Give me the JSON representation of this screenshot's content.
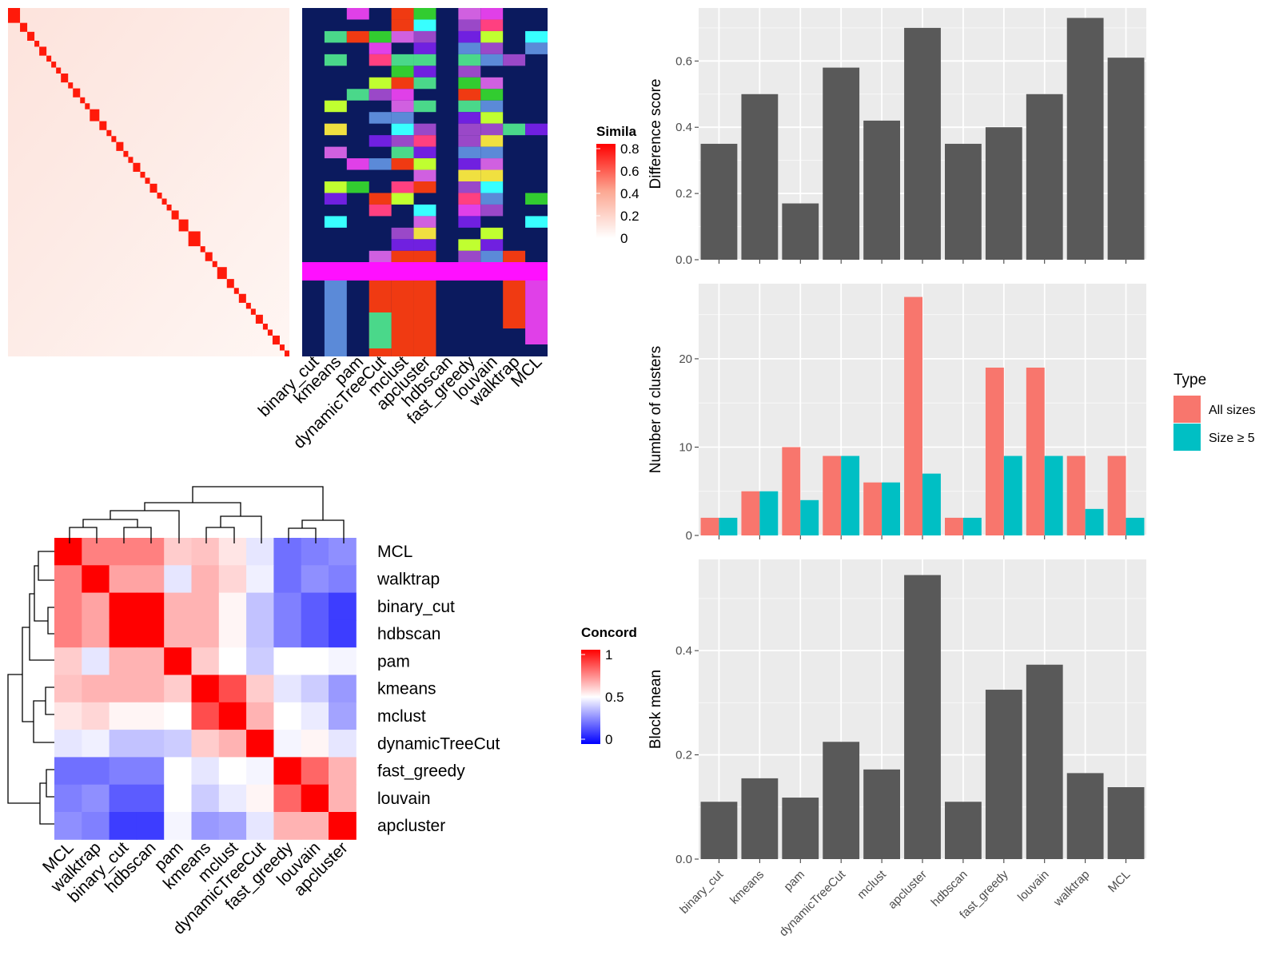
{
  "methods_order": [
    "binary_cut",
    "kmeans",
    "pam",
    "dynamicTreeCut",
    "mclust",
    "apcluster",
    "hdbscan",
    "fast_greedy",
    "louvain",
    "walktrap",
    "MCL"
  ],
  "similarity_heatmap": {
    "legend_title": "Simila",
    "legend_ticks": [
      "0.8",
      "0.6",
      "0.4",
      "0.2",
      "0"
    ],
    "columns": [
      "binary_cut",
      "kmeans",
      "pam",
      "dynamicTreeCut",
      "mclust",
      "apcluster",
      "hdbscan",
      "fast_greedy",
      "louvain",
      "walktrap",
      "MCL"
    ]
  },
  "concordance_heatmap": {
    "legend_title": "Concord",
    "legend_ticks": [
      "1",
      "0.5",
      "0"
    ],
    "order": [
      "MCL",
      "walktrap",
      "binary_cut",
      "hdbscan",
      "pam",
      "kmeans",
      "mclust",
      "dynamicTreeCut",
      "fast_greedy",
      "louvain",
      "apcluster"
    ],
    "matrix": [
      [
        1.0,
        0.75,
        0.75,
        0.75,
        0.6,
        0.62,
        0.55,
        0.45,
        0.22,
        0.25,
        0.28
      ],
      [
        0.75,
        1.0,
        0.68,
        0.68,
        0.45,
        0.65,
        0.58,
        0.47,
        0.22,
        0.28,
        0.25
      ],
      [
        0.75,
        0.68,
        1.0,
        1.0,
        0.65,
        0.65,
        0.52,
        0.38,
        0.25,
        0.18,
        0.12
      ],
      [
        0.75,
        0.68,
        1.0,
        1.0,
        0.65,
        0.65,
        0.52,
        0.38,
        0.25,
        0.18,
        0.12
      ],
      [
        0.6,
        0.45,
        0.65,
        0.65,
        1.0,
        0.6,
        0.5,
        0.4,
        0.5,
        0.5,
        0.48
      ],
      [
        0.62,
        0.65,
        0.65,
        0.65,
        0.6,
        1.0,
        0.85,
        0.6,
        0.45,
        0.4,
        0.3
      ],
      [
        0.55,
        0.58,
        0.52,
        0.52,
        0.5,
        0.85,
        1.0,
        0.65,
        0.5,
        0.46,
        0.32
      ],
      [
        0.45,
        0.47,
        0.38,
        0.38,
        0.4,
        0.6,
        0.65,
        1.0,
        0.48,
        0.52,
        0.45
      ],
      [
        0.22,
        0.22,
        0.25,
        0.25,
        0.5,
        0.45,
        0.5,
        0.48,
        1.0,
        0.8,
        0.65
      ],
      [
        0.25,
        0.28,
        0.18,
        0.18,
        0.5,
        0.4,
        0.46,
        0.52,
        0.8,
        1.0,
        0.65
      ],
      [
        0.28,
        0.25,
        0.12,
        0.12,
        0.48,
        0.3,
        0.32,
        0.45,
        0.65,
        0.65,
        1.0
      ]
    ]
  },
  "chart_data": [
    {
      "type": "bar",
      "categories": [
        "binary_cut",
        "kmeans",
        "pam",
        "dynamicTreeCut",
        "mclust",
        "apcluster",
        "hdbscan",
        "fast_greedy",
        "louvain",
        "walktrap",
        "MCL"
      ],
      "values": [
        0.35,
        0.5,
        0.17,
        0.58,
        0.42,
        0.7,
        0.35,
        0.4,
        0.5,
        0.73,
        0.61
      ],
      "title": "",
      "xlabel": "",
      "ylabel": "Difference score",
      "ylim": [
        0,
        0.76
      ],
      "yticks": [
        "0.0",
        "0.2",
        "0.4",
        "0.6"
      ],
      "bar_color": "#595959",
      "grid": true
    },
    {
      "type": "bar",
      "categories": [
        "binary_cut",
        "kmeans",
        "pam",
        "dynamicTreeCut",
        "mclust",
        "apcluster",
        "hdbscan",
        "fast_greedy",
        "louvain",
        "walktrap",
        "MCL"
      ],
      "series": [
        {
          "name": "All sizes",
          "values": [
            2,
            5,
            10,
            9,
            6,
            27,
            2,
            19,
            19,
            9,
            9
          ],
          "color": "#F8766D"
        },
        {
          "name": "Size ≥ 5",
          "values": [
            2,
            5,
            4,
            9,
            6,
            7,
            2,
            9,
            9,
            3,
            2
          ],
          "color": "#00BFC4"
        }
      ],
      "title": "",
      "xlabel": "",
      "ylabel": "Number of clusters",
      "ylim": [
        0,
        28.5
      ],
      "yticks": [
        "0",
        "10",
        "20"
      ],
      "legend_title": "Type",
      "legend_position": "right",
      "grid": true
    },
    {
      "type": "bar",
      "categories": [
        "binary_cut",
        "kmeans",
        "pam",
        "dynamicTreeCut",
        "mclust",
        "apcluster",
        "hdbscan",
        "fast_greedy",
        "louvain",
        "walktrap",
        "MCL"
      ],
      "values": [
        0.11,
        0.155,
        0.118,
        0.225,
        0.172,
        0.545,
        0.11,
        0.325,
        0.373,
        0.165,
        0.138
      ],
      "title": "",
      "xlabel": "",
      "ylabel": "Block mean",
      "ylim": [
        0,
        0.575
      ],
      "yticks": [
        "0.0",
        "0.2",
        "0.4"
      ],
      "bar_color": "#595959",
      "grid": true
    }
  ]
}
